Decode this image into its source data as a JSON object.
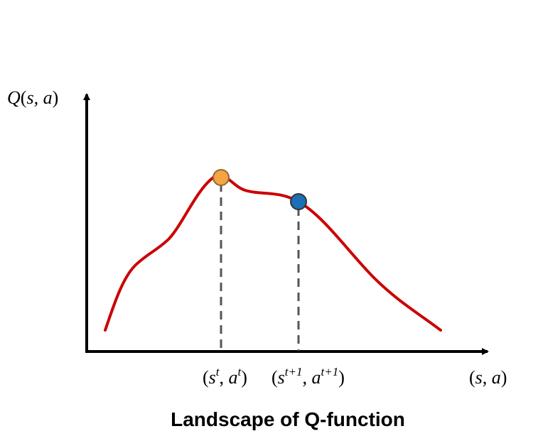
{
  "axes": {
    "y_label": {
      "prefix": "Q",
      "open": "(",
      "vars": "s, a",
      "close": ")"
    },
    "x_label": {
      "open": "(",
      "vars": "s, a",
      "close": ")"
    }
  },
  "points": [
    {
      "id": "current",
      "label_open": "(",
      "s": "s",
      "s_sup": "t",
      "sep": ", ",
      "a": "a",
      "a_sup": "t",
      "label_close": ")",
      "color": "#f5a442"
    },
    {
      "id": "next",
      "label_open": "(",
      "s": "s",
      "s_sup": "t+1",
      "sep": ", ",
      "a": "a",
      "a_sup": "t+1",
      "label_close": ")",
      "color": "#1a6fb5"
    }
  ],
  "colors": {
    "curve": "#cc0000",
    "axis": "#000000",
    "guide": "#555555"
  },
  "caption": "Landscape of Q-function"
}
